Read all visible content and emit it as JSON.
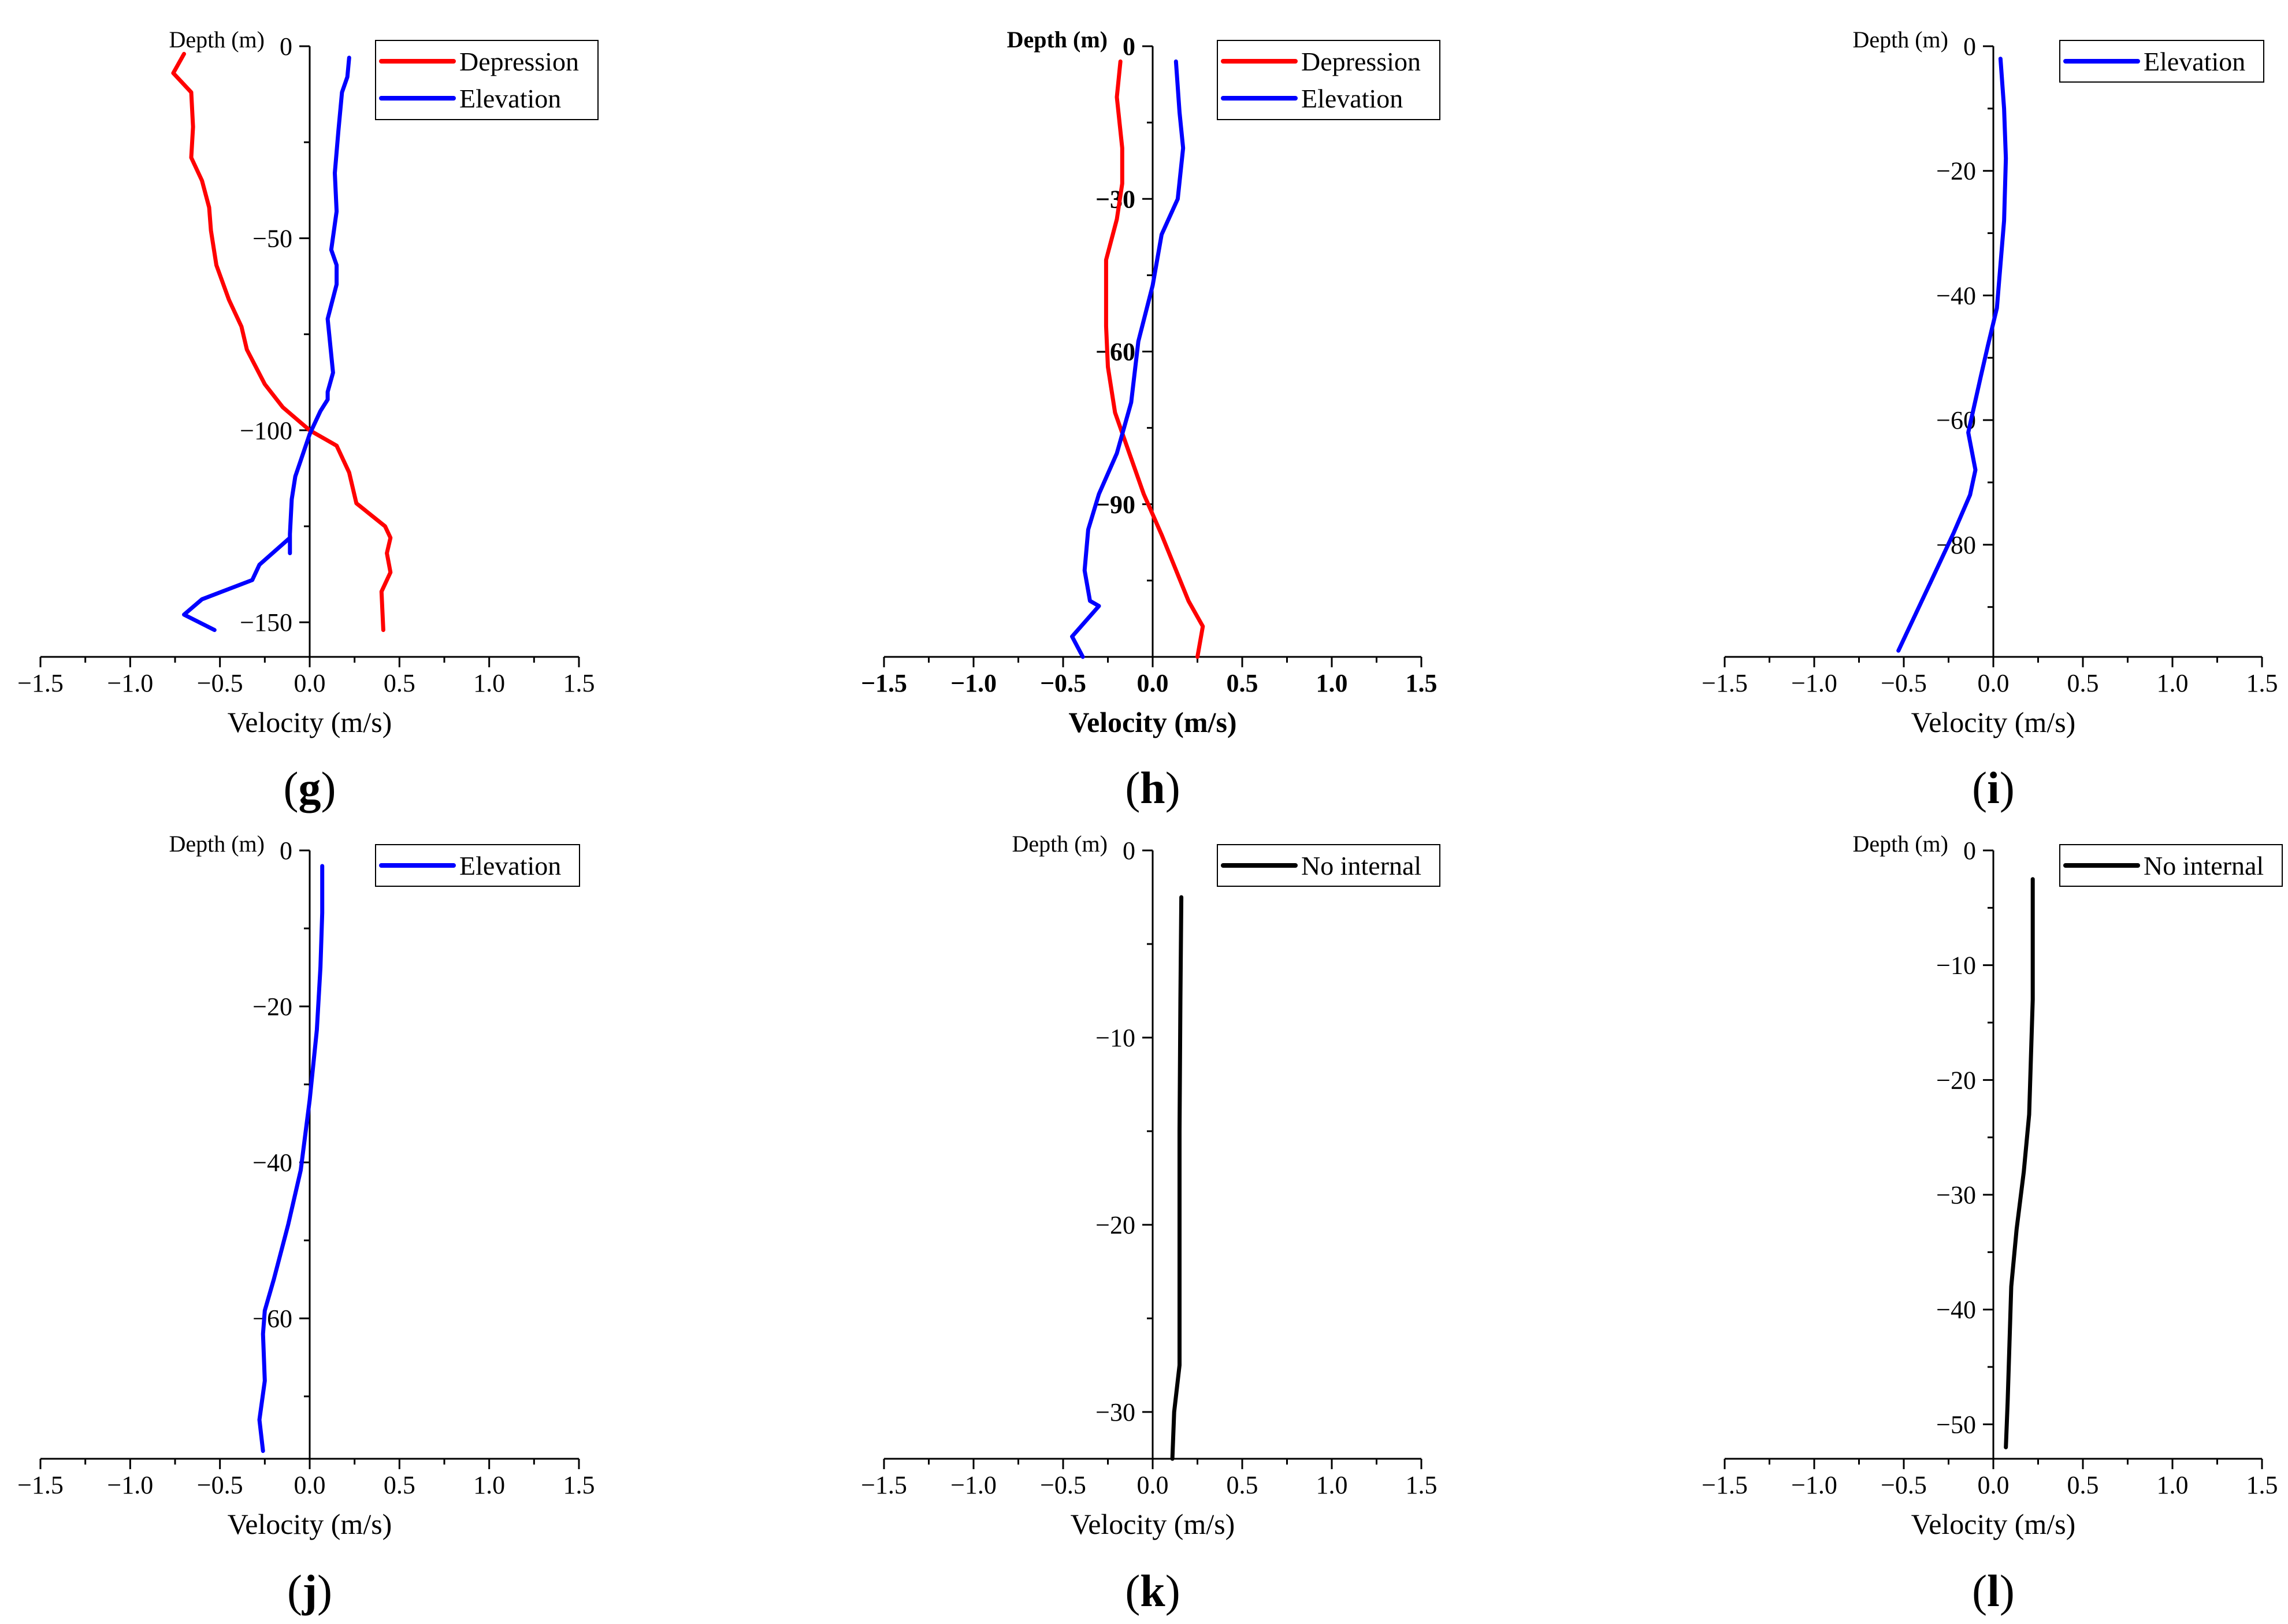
{
  "figure": {
    "panels_layout": "two rows by three columns",
    "colors": {
      "depression": "#ff0000",
      "elevation": "#0000ff",
      "no_internal": "#000000",
      "axis": "#000000"
    }
  },
  "chart_data": [
    {
      "id": "g",
      "type": "line",
      "panel_label": "g",
      "xlabel": "Velocity (m/s)",
      "ylabel": "Depth (m)",
      "xlim": [
        -1.5,
        1.5
      ],
      "xticks": [
        -1.5,
        -1.0,
        -0.5,
        0.0,
        0.5,
        1.0,
        1.5
      ],
      "xtick_labels": [
        "−1.5",
        "−1.0",
        "−0.5",
        "0.0",
        "0.5",
        "1.0",
        "1.5"
      ],
      "ylim": [
        -159,
        0
      ],
      "yticks": [
        0,
        -50,
        -100,
        -150
      ],
      "ytick_labels": [
        "0",
        "−50",
        "−100",
        "−150"
      ],
      "legend": [
        "Depression",
        "Elevation"
      ],
      "series": [
        {
          "name": "Depression",
          "color": "#ff0000",
          "x": [
            -0.7,
            -0.76,
            -0.66,
            -0.65,
            -0.66,
            -0.6,
            -0.56,
            -0.55,
            -0.52,
            -0.45,
            -0.38,
            -0.35,
            -0.25,
            -0.15,
            0.0,
            0.15,
            0.22,
            0.26,
            0.42,
            0.45,
            0.43,
            0.45,
            0.4,
            0.41
          ],
          "y": [
            -2,
            -7,
            -12,
            -21,
            -29,
            -35,
            -42,
            -48,
            -57,
            -66,
            -73,
            -79,
            -88,
            -94,
            -100,
            -104,
            -111,
            -119,
            -125,
            -128,
            -132,
            -137,
            -142,
            -152
          ]
        },
        {
          "name": "Elevation",
          "color": "#0000ff",
          "x": [
            0.22,
            0.21,
            0.18,
            0.16,
            0.14,
            0.15,
            0.12,
            0.15,
            0.15,
            0.1,
            0.13,
            0.1,
            0.1,
            0.06,
            0.0,
            -0.08,
            -0.1,
            -0.11,
            -0.11,
            -0.11,
            -0.28,
            -0.32,
            -0.6,
            -0.7,
            -0.53
          ],
          "y": [
            -3,
            -8,
            -12,
            -22,
            -33,
            -43,
            -53,
            -57,
            -62,
            -71,
            -85,
            -90,
            -92,
            -95,
            -101,
            -112,
            -118,
            -127,
            -132,
            -128,
            -135,
            -139,
            -144,
            -148,
            -152
          ]
        }
      ]
    },
    {
      "id": "h",
      "type": "line",
      "panel_label": "h",
      "xlabel": "Velocity (m/s)",
      "ylabel": "Depth (m)",
      "bold_labels": true,
      "xlim": [
        -1.5,
        1.5
      ],
      "xticks": [
        -1.5,
        -1.0,
        -0.5,
        0.0,
        0.5,
        1.0,
        1.5
      ],
      "xtick_labels": [
        "−1.5",
        "−1.0",
        "−0.5",
        "0.0",
        "0.5",
        "1.0",
        "1.5"
      ],
      "ylim": [
        -120,
        0
      ],
      "yticks": [
        0,
        -30,
        -60,
        -90
      ],
      "ytick_labels": [
        "0",
        "−30",
        "−60",
        "−90"
      ],
      "legend": [
        "Depression",
        "Elevation"
      ],
      "series": [
        {
          "name": "Depression",
          "color": "#ff0000",
          "x": [
            -0.18,
            -0.2,
            -0.17,
            -0.17,
            -0.2,
            -0.26,
            -0.26,
            -0.25,
            -0.21,
            -0.13,
            -0.05,
            0.05,
            0.2,
            0.28,
            0.25
          ],
          "y": [
            -3,
            -10,
            -20,
            -27,
            -34,
            -42,
            -55,
            -63,
            -72,
            -80,
            -88,
            -96,
            -109,
            -114,
            -120
          ]
        },
        {
          "name": "Elevation",
          "color": "#0000ff",
          "x": [
            0.13,
            0.15,
            0.17,
            0.14,
            0.05,
            0.0,
            -0.08,
            -0.12,
            -0.2,
            -0.3,
            -0.36,
            -0.38,
            -0.35,
            -0.3,
            -0.45,
            -0.39
          ],
          "y": [
            -3,
            -13,
            -20,
            -30,
            -37,
            -47,
            -58,
            -70,
            -80,
            -88,
            -95,
            -103,
            -109,
            -110,
            -116,
            -120
          ]
        }
      ]
    },
    {
      "id": "i",
      "type": "line",
      "panel_label": "i",
      "xlabel": "Velocity (m/s)",
      "ylabel": "Depth (m)",
      "xlim": [
        -1.5,
        1.5
      ],
      "xticks": [
        -1.5,
        -1.0,
        -0.5,
        0.0,
        0.5,
        1.0,
        1.5
      ],
      "xtick_labels": [
        "−1.5",
        "−1.0",
        "−0.5",
        "0.0",
        "0.5",
        "1.0",
        "1.5"
      ],
      "ylim": [
        -98,
        0
      ],
      "yticks": [
        0,
        -20,
        -40,
        -60,
        -80
      ],
      "ytick_labels": [
        "0",
        "−20",
        "−40",
        "−60",
        "−80"
      ],
      "legend": [
        "Elevation"
      ],
      "series": [
        {
          "name": "Elevation",
          "color": "#0000ff",
          "x": [
            0.04,
            0.06,
            0.07,
            0.06,
            0.04,
            0.02,
            -0.03,
            -0.07,
            -0.14,
            -0.1,
            -0.13,
            -0.22,
            -0.35,
            -0.53
          ],
          "y": [
            -2,
            -10,
            -18,
            -28,
            -35,
            -42,
            -48,
            -53,
            -62,
            -68,
            -72,
            -78,
            -86,
            -97
          ]
        }
      ]
    },
    {
      "id": "j",
      "type": "line",
      "panel_label": "j",
      "xlabel": "Velocity (m/s)",
      "ylabel": "Depth (m)",
      "xlim": [
        -1.5,
        1.5
      ],
      "xticks": [
        -1.5,
        -1.0,
        -0.5,
        0.0,
        0.5,
        1.0,
        1.5
      ],
      "xtick_labels": [
        "−1.5",
        "−1.0",
        "−0.5",
        "0.0",
        "0.5",
        "1.0",
        "1.5"
      ],
      "ylim": [
        -78,
        0
      ],
      "yticks": [
        0,
        -20,
        -40,
        -60
      ],
      "ytick_labels": [
        "0",
        "−20",
        "−40",
        "−60"
      ],
      "legend": [
        "Elevation"
      ],
      "series": [
        {
          "name": "Elevation",
          "color": "#0000ff",
          "x": [
            0.07,
            0.07,
            0.06,
            0.04,
            0.0,
            -0.05,
            -0.12,
            -0.2,
            -0.25,
            -0.26,
            -0.25,
            -0.28,
            -0.26
          ],
          "y": [
            -2,
            -8,
            -15,
            -23,
            -32,
            -41,
            -48,
            -55,
            -59,
            -62,
            -68,
            -73,
            -77
          ]
        }
      ]
    },
    {
      "id": "k",
      "type": "line",
      "panel_label": "k",
      "xlabel": "Velocity (m/s)",
      "ylabel": "Depth (m)",
      "xlim": [
        -1.5,
        1.5
      ],
      "xticks": [
        -1.5,
        -1.0,
        -0.5,
        0.0,
        0.5,
        1.0,
        1.5
      ],
      "xtick_labels": [
        "−1.5",
        "−1.0",
        "−0.5",
        "0.0",
        "0.5",
        "1.0",
        "1.5"
      ],
      "ylim": [
        -32.5,
        0
      ],
      "yticks": [
        0,
        -10,
        -20,
        -30
      ],
      "ytick_labels": [
        "0",
        "−10",
        "−20",
        "−30"
      ],
      "legend": [
        "No internal"
      ],
      "series": [
        {
          "name": "No internal",
          "color": "#000000",
          "x": [
            0.16,
            0.155,
            0.15,
            0.15,
            0.15,
            0.15,
            0.12,
            0.11
          ],
          "y": [
            -2.5,
            -8,
            -15,
            -20,
            -25,
            -27.5,
            -30,
            -32.5
          ]
        }
      ]
    },
    {
      "id": "l",
      "type": "line",
      "panel_label": "l",
      "xlabel": "Velocity (m/s)",
      "ylabel": "Depth (m)",
      "xlim": [
        -1.5,
        1.5
      ],
      "xticks": [
        -1.5,
        -1.0,
        -0.5,
        0.0,
        0.5,
        1.0,
        1.5
      ],
      "xtick_labels": [
        "−1.5",
        "−1.0",
        "−0.5",
        "0.0",
        "0.5",
        "1.0",
        "1.5"
      ],
      "ylim": [
        -53,
        0
      ],
      "yticks": [
        0,
        -10,
        -20,
        -30,
        -40,
        -50
      ],
      "ytick_labels": [
        "0",
        "−10",
        "−20",
        "−30",
        "−40",
        "−50"
      ],
      "legend": [
        "No internal"
      ],
      "series": [
        {
          "name": "No internal",
          "color": "#000000",
          "x": [
            0.22,
            0.22,
            0.21,
            0.2,
            0.17,
            0.13,
            0.1,
            0.09,
            0.08,
            0.07
          ],
          "y": [
            -2.5,
            -13,
            -18,
            -23,
            -28,
            -33,
            -38,
            -43,
            -48,
            -52
          ]
        }
      ]
    }
  ]
}
